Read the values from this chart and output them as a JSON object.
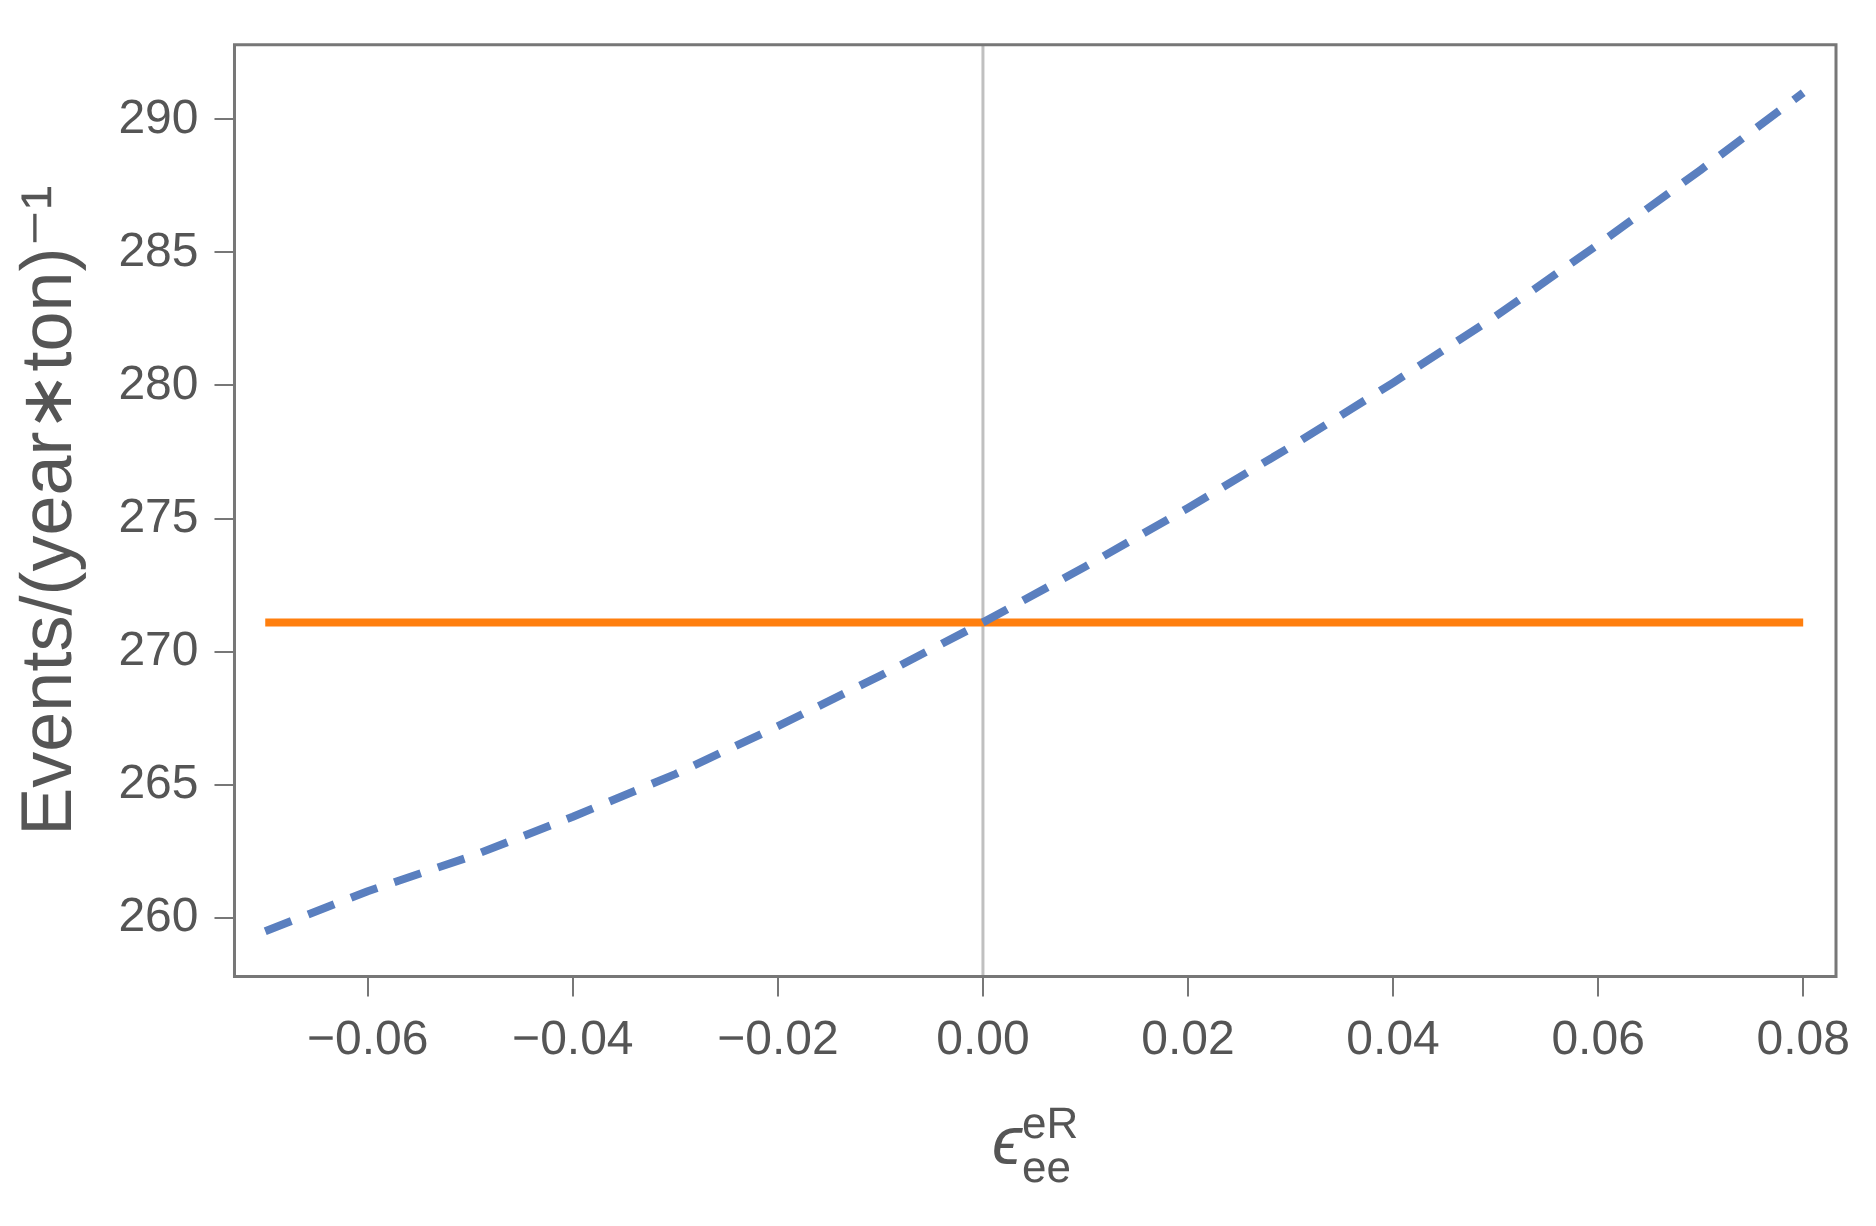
{
  "chart_data": {
    "type": "line",
    "xlabel": "ϵ$^{eR}$$_{ee}$",
    "ylabel": "Events/(year∗ton)⁻¹",
    "x": [
      -0.07,
      -0.06,
      -0.05,
      -0.04,
      -0.03,
      -0.02,
      -0.01,
      0,
      0.01,
      0.02,
      0.03,
      0.04,
      0.05,
      0.06,
      0.07,
      0.08
    ],
    "series": [
      {
        "color": "#5a7fbf",
        "line_style": "dashed",
        "values": [
          259.5,
          261.0,
          262.3,
          263.8,
          265.4,
          267.2,
          269.1,
          271.1,
          273.2,
          275.4,
          277.7,
          280.1,
          282.6,
          285.3,
          288.1,
          291.0
        ]
      },
      {
        "color": "#ff7f0e",
        "line_style": "solid",
        "x": [
          -0.07,
          0.08
        ],
        "values": [
          271.1,
          271.1
        ]
      }
    ],
    "xlim": [
      -0.073,
      0.0832
    ],
    "xticks": [
      {
        "value": -0.06,
        "label": "−0.06"
      },
      {
        "value": -0.04,
        "label": "−0.04"
      },
      {
        "value": -0.02,
        "label": "−0.02"
      },
      {
        "value": 0,
        "label": "0.00"
      },
      {
        "value": 0.02,
        "label": "0.02"
      },
      {
        "value": 0.04,
        "label": "0.04"
      },
      {
        "value": 0.06,
        "label": "0.06"
      },
      {
        "value": 0.08,
        "label": "0.08"
      }
    ],
    "ylim": [
      257.8,
      292.8
    ],
    "yticks": [
      260,
      265,
      270,
      275,
      280,
      285,
      290
    ],
    "ref_lines": [
      {
        "axis": "x",
        "value": 0,
        "color": "#c0c0c0"
      }
    ],
    "grid": false,
    "legend": false,
    "marker": "none"
  }
}
